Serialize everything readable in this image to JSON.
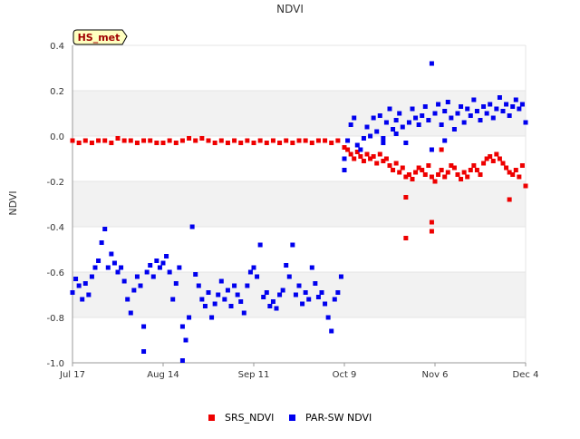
{
  "chart_data": {
    "type": "scatter",
    "title": "NDVI",
    "ylabel": "NDVI",
    "xlabel": "",
    "badge": "HS_met",
    "ylim": [
      -1.0,
      0.4
    ],
    "xlim": [
      "2023-07-17",
      "2023-12-04"
    ],
    "yticks": [
      "0.4",
      "0.2",
      "0.0",
      "-0.2",
      "-0.4",
      "-0.6",
      "-0.8",
      "-1.0"
    ],
    "xticks": [
      "Jul 17",
      "Aug 14",
      "Sep 11",
      "Oct 9",
      "Nov 6",
      "Dec 4"
    ],
    "grid": "horizontal bands",
    "legend_position": "bottom",
    "series": [
      {
        "name": "SRS_NDVI",
        "color": "#ee0000",
        "points": [
          [
            "2023-07-17",
            -0.02
          ],
          [
            "2023-07-19",
            -0.03
          ],
          [
            "2023-07-21",
            -0.02
          ],
          [
            "2023-07-23",
            -0.03
          ],
          [
            "2023-07-25",
            -0.02
          ],
          [
            "2023-07-27",
            -0.02
          ],
          [
            "2023-07-29",
            -0.03
          ],
          [
            "2023-07-31",
            -0.01
          ],
          [
            "2023-08-02",
            -0.02
          ],
          [
            "2023-08-04",
            -0.02
          ],
          [
            "2023-08-06",
            -0.03
          ],
          [
            "2023-08-08",
            -0.02
          ],
          [
            "2023-08-10",
            -0.02
          ],
          [
            "2023-08-12",
            -0.03
          ],
          [
            "2023-08-14",
            -0.03
          ],
          [
            "2023-08-16",
            -0.02
          ],
          [
            "2023-08-18",
            -0.03
          ],
          [
            "2023-08-20",
            -0.02
          ],
          [
            "2023-08-22",
            -0.01
          ],
          [
            "2023-08-24",
            -0.02
          ],
          [
            "2023-08-26",
            -0.01
          ],
          [
            "2023-08-28",
            -0.02
          ],
          [
            "2023-08-30",
            -0.03
          ],
          [
            "2023-09-01",
            -0.02
          ],
          [
            "2023-09-03",
            -0.03
          ],
          [
            "2023-09-05",
            -0.02
          ],
          [
            "2023-09-07",
            -0.03
          ],
          [
            "2023-09-09",
            -0.02
          ],
          [
            "2023-09-11",
            -0.03
          ],
          [
            "2023-09-13",
            -0.02
          ],
          [
            "2023-09-15",
            -0.03
          ],
          [
            "2023-09-17",
            -0.02
          ],
          [
            "2023-09-19",
            -0.03
          ],
          [
            "2023-09-21",
            -0.02
          ],
          [
            "2023-09-23",
            -0.03
          ],
          [
            "2023-09-25",
            -0.02
          ],
          [
            "2023-09-27",
            -0.02
          ],
          [
            "2023-09-29",
            -0.03
          ],
          [
            "2023-10-01",
            -0.02
          ],
          [
            "2023-10-03",
            -0.02
          ],
          [
            "2023-10-05",
            -0.03
          ],
          [
            "2023-10-07",
            -0.02
          ],
          [
            "2023-10-09",
            -0.05
          ],
          [
            "2023-10-10",
            -0.06
          ],
          [
            "2023-10-11",
            -0.08
          ],
          [
            "2023-10-12",
            -0.1
          ],
          [
            "2023-10-13",
            -0.07
          ],
          [
            "2023-10-14",
            -0.09
          ],
          [
            "2023-10-15",
            -0.11
          ],
          [
            "2023-10-16",
            -0.08
          ],
          [
            "2023-10-17",
            -0.1
          ],
          [
            "2023-10-18",
            -0.09
          ],
          [
            "2023-10-19",
            -0.12
          ],
          [
            "2023-10-20",
            -0.08
          ],
          [
            "2023-10-21",
            -0.11
          ],
          [
            "2023-10-22",
            -0.1
          ],
          [
            "2023-10-23",
            -0.13
          ],
          [
            "2023-10-24",
            -0.15
          ],
          [
            "2023-10-25",
            -0.12
          ],
          [
            "2023-10-26",
            -0.16
          ],
          [
            "2023-10-27",
            -0.14
          ],
          [
            "2023-10-28",
            -0.18
          ],
          [
            "2023-10-28",
            -0.27
          ],
          [
            "2023-10-29",
            -0.17
          ],
          [
            "2023-10-30",
            -0.19
          ],
          [
            "2023-10-31",
            -0.16
          ],
          [
            "2023-11-01",
            -0.14
          ],
          [
            "2023-11-02",
            -0.15
          ],
          [
            "2023-11-03",
            -0.17
          ],
          [
            "2023-11-04",
            -0.13
          ],
          [
            "2023-11-05",
            -0.18
          ],
          [
            "2023-11-06",
            -0.2
          ],
          [
            "2023-11-07",
            -0.17
          ],
          [
            "2023-11-08",
            -0.15
          ],
          [
            "2023-11-09",
            -0.18
          ],
          [
            "2023-11-10",
            -0.16
          ],
          [
            "2023-11-11",
            -0.13
          ],
          [
            "2023-11-12",
            -0.14
          ],
          [
            "2023-11-13",
            -0.17
          ],
          [
            "2023-11-14",
            -0.19
          ],
          [
            "2023-11-15",
            -0.16
          ],
          [
            "2023-11-16",
            -0.18
          ],
          [
            "2023-11-17",
            -0.15
          ],
          [
            "2023-11-18",
            -0.13
          ],
          [
            "2023-11-19",
            -0.15
          ],
          [
            "2023-11-20",
            -0.17
          ],
          [
            "2023-11-21",
            -0.12
          ],
          [
            "2023-11-22",
            -0.1
          ],
          [
            "2023-11-23",
            -0.09
          ],
          [
            "2023-11-24",
            -0.11
          ],
          [
            "2023-11-25",
            -0.08
          ],
          [
            "2023-11-26",
            -0.1
          ],
          [
            "2023-11-27",
            -0.12
          ],
          [
            "2023-11-28",
            -0.14
          ],
          [
            "2023-11-29",
            -0.16
          ],
          [
            "2023-11-30",
            -0.17
          ],
          [
            "2023-12-01",
            -0.15
          ],
          [
            "2023-12-02",
            -0.18
          ],
          [
            "2023-12-03",
            -0.13
          ],
          [
            "2023-12-04",
            -0.22
          ],
          [
            "2023-10-28",
            -0.45
          ],
          [
            "2023-11-05",
            -0.38
          ],
          [
            "2023-11-05",
            -0.42
          ],
          [
            "2023-11-08",
            -0.06
          ],
          [
            "2023-11-29",
            -0.28
          ]
        ]
      },
      {
        "name": "PAR-SW NDVI",
        "color": "#0000ee",
        "points": [
          [
            "2023-07-17",
            -0.69
          ],
          [
            "2023-07-18",
            -0.63
          ],
          [
            "2023-07-19",
            -0.66
          ],
          [
            "2023-07-20",
            -0.72
          ],
          [
            "2023-07-21",
            -0.65
          ],
          [
            "2023-07-22",
            -0.7
          ],
          [
            "2023-07-23",
            -0.62
          ],
          [
            "2023-07-24",
            -0.58
          ],
          [
            "2023-07-25",
            -0.55
          ],
          [
            "2023-07-26",
            -0.47
          ],
          [
            "2023-07-27",
            -0.41
          ],
          [
            "2023-07-28",
            -0.58
          ],
          [
            "2023-07-29",
            -0.52
          ],
          [
            "2023-07-30",
            -0.56
          ],
          [
            "2023-07-31",
            -0.6
          ],
          [
            "2023-08-01",
            -0.58
          ],
          [
            "2023-08-02",
            -0.64
          ],
          [
            "2023-08-03",
            -0.72
          ],
          [
            "2023-08-04",
            -0.78
          ],
          [
            "2023-08-05",
            -0.68
          ],
          [
            "2023-08-06",
            -0.62
          ],
          [
            "2023-08-07",
            -0.66
          ],
          [
            "2023-08-08",
            -0.84
          ],
          [
            "2023-08-08",
            -0.95
          ],
          [
            "2023-08-09",
            -0.6
          ],
          [
            "2023-08-10",
            -0.57
          ],
          [
            "2023-08-11",
            -0.62
          ],
          [
            "2023-08-12",
            -0.55
          ],
          [
            "2023-08-13",
            -0.58
          ],
          [
            "2023-08-14",
            -0.56
          ],
          [
            "2023-08-15",
            -0.53
          ],
          [
            "2023-08-16",
            -0.6
          ],
          [
            "2023-08-17",
            -0.72
          ],
          [
            "2023-08-18",
            -0.65
          ],
          [
            "2023-08-19",
            -0.58
          ],
          [
            "2023-08-20",
            -0.84
          ],
          [
            "2023-08-20",
            -0.99
          ],
          [
            "2023-08-21",
            -0.9
          ],
          [
            "2023-08-22",
            -0.8
          ],
          [
            "2023-08-23",
            -0.4
          ],
          [
            "2023-08-24",
            -0.61
          ],
          [
            "2023-08-25",
            -0.66
          ],
          [
            "2023-08-26",
            -0.72
          ],
          [
            "2023-08-27",
            -0.75
          ],
          [
            "2023-08-28",
            -0.69
          ],
          [
            "2023-08-29",
            -0.8
          ],
          [
            "2023-08-30",
            -0.74
          ],
          [
            "2023-08-31",
            -0.7
          ],
          [
            "2023-09-01",
            -0.64
          ],
          [
            "2023-09-02",
            -0.72
          ],
          [
            "2023-09-03",
            -0.68
          ],
          [
            "2023-09-04",
            -0.75
          ],
          [
            "2023-09-05",
            -0.66
          ],
          [
            "2023-09-06",
            -0.7
          ],
          [
            "2023-09-07",
            -0.73
          ],
          [
            "2023-09-08",
            -0.78
          ],
          [
            "2023-09-09",
            -0.66
          ],
          [
            "2023-09-10",
            -0.6
          ],
          [
            "2023-09-11",
            -0.58
          ],
          [
            "2023-09-12",
            -0.62
          ],
          [
            "2023-09-13",
            -0.48
          ],
          [
            "2023-09-14",
            -0.71
          ],
          [
            "2023-09-15",
            -0.69
          ],
          [
            "2023-09-16",
            -0.75
          ],
          [
            "2023-09-17",
            -0.73
          ],
          [
            "2023-09-18",
            -0.76
          ],
          [
            "2023-09-19",
            -0.7
          ],
          [
            "2023-09-20",
            -0.68
          ],
          [
            "2023-09-21",
            -0.57
          ],
          [
            "2023-09-22",
            -0.62
          ],
          [
            "2023-09-23",
            -0.48
          ],
          [
            "2023-09-24",
            -0.7
          ],
          [
            "2023-09-25",
            -0.66
          ],
          [
            "2023-09-26",
            -0.74
          ],
          [
            "2023-09-27",
            -0.69
          ],
          [
            "2023-09-28",
            -0.72
          ],
          [
            "2023-09-29",
            -0.58
          ],
          [
            "2023-09-30",
            -0.65
          ],
          [
            "2023-10-01",
            -0.71
          ],
          [
            "2023-10-02",
            -0.69
          ],
          [
            "2023-10-03",
            -0.74
          ],
          [
            "2023-10-04",
            -0.8
          ],
          [
            "2023-10-05",
            -0.86
          ],
          [
            "2023-10-06",
            -0.72
          ],
          [
            "2023-10-07",
            -0.69
          ],
          [
            "2023-10-08",
            -0.62
          ],
          [
            "2023-10-09",
            -0.1
          ],
          [
            "2023-10-09",
            -0.15
          ],
          [
            "2023-10-10",
            -0.02
          ],
          [
            "2023-10-11",
            0.05
          ],
          [
            "2023-10-12",
            0.08
          ],
          [
            "2023-10-13",
            -0.04
          ],
          [
            "2023-10-14",
            -0.06
          ],
          [
            "2023-10-15",
            -0.01
          ],
          [
            "2023-10-16",
            0.04
          ],
          [
            "2023-10-17",
            0.0
          ],
          [
            "2023-10-18",
            0.08
          ],
          [
            "2023-10-19",
            0.02
          ],
          [
            "2023-10-20",
            0.09
          ],
          [
            "2023-10-21",
            -0.03
          ],
          [
            "2023-10-22",
            0.06
          ],
          [
            "2023-10-23",
            0.12
          ],
          [
            "2023-10-24",
            0.03
          ],
          [
            "2023-10-25",
            0.07
          ],
          [
            "2023-10-26",
            0.1
          ],
          [
            "2023-10-27",
            0.04
          ],
          [
            "2023-10-28",
            -0.03
          ],
          [
            "2023-10-29",
            0.06
          ],
          [
            "2023-10-30",
            0.12
          ],
          [
            "2023-10-31",
            0.08
          ],
          [
            "2023-11-01",
            0.05
          ],
          [
            "2023-11-02",
            0.09
          ],
          [
            "2023-11-03",
            0.13
          ],
          [
            "2023-11-04",
            0.07
          ],
          [
            "2023-11-05",
            0.32
          ],
          [
            "2023-11-06",
            0.1
          ],
          [
            "2023-11-07",
            0.14
          ],
          [
            "2023-11-08",
            0.05
          ],
          [
            "2023-11-09",
            0.11
          ],
          [
            "2023-11-10",
            0.15
          ],
          [
            "2023-11-11",
            0.08
          ],
          [
            "2023-11-12",
            0.03
          ],
          [
            "2023-11-13",
            0.1
          ],
          [
            "2023-11-14",
            0.13
          ],
          [
            "2023-11-15",
            0.06
          ],
          [
            "2023-11-16",
            0.12
          ],
          [
            "2023-11-17",
            0.09
          ],
          [
            "2023-11-18",
            0.16
          ],
          [
            "2023-11-19",
            0.11
          ],
          [
            "2023-11-20",
            0.07
          ],
          [
            "2023-11-21",
            0.13
          ],
          [
            "2023-11-22",
            0.1
          ],
          [
            "2023-11-23",
            0.14
          ],
          [
            "2023-11-24",
            0.08
          ],
          [
            "2023-11-25",
            0.12
          ],
          [
            "2023-11-26",
            0.17
          ],
          [
            "2023-11-27",
            0.11
          ],
          [
            "2023-11-28",
            0.14
          ],
          [
            "2023-11-29",
            0.09
          ],
          [
            "2023-11-30",
            0.13
          ],
          [
            "2023-12-01",
            0.16
          ],
          [
            "2023-12-02",
            0.12
          ],
          [
            "2023-12-03",
            0.14
          ],
          [
            "2023-12-04",
            0.06
          ],
          [
            "2023-10-21",
            -0.01
          ],
          [
            "2023-11-05",
            -0.06
          ],
          [
            "2023-11-09",
            -0.02
          ],
          [
            "2023-10-25",
            0.01
          ]
        ]
      }
    ]
  }
}
